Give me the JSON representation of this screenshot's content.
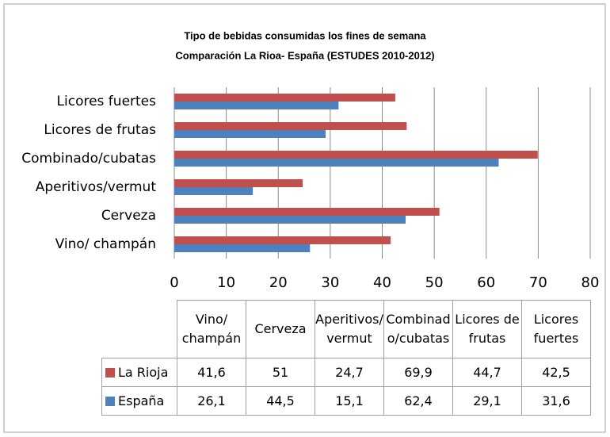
{
  "chart_data": {
    "type": "bar",
    "orientation": "horizontal",
    "title": "Tipo de bebidas consumidas los fines de semana",
    "subtitle": "Comparación La Rioa- España (ESTUDES 2010-2012)",
    "categories": [
      "Vino/ champán",
      "Cerveza",
      "Aperitivos/vermut",
      "Combinado/cubatas",
      "Licores de frutas",
      "Licores fuertes"
    ],
    "series": [
      {
        "name": "La Rioja",
        "color": "#c0504d",
        "values": [
          41.6,
          51,
          24.7,
          69.9,
          44.7,
          42.5
        ],
        "value_labels": [
          "41,6",
          "51",
          "24,7",
          "69,9",
          "44,7",
          "42,5"
        ]
      },
      {
        "name": "España",
        "color": "#4f81bd",
        "values": [
          26.1,
          44.5,
          15.1,
          62.4,
          29.1,
          31.6
        ],
        "value_labels": [
          "26,1",
          "44,5",
          "15,1",
          "62,4",
          "29,1",
          "31,6"
        ]
      }
    ],
    "xlim": [
      0,
      80
    ],
    "xticks": [
      0,
      10,
      20,
      30,
      40,
      50,
      60,
      70,
      80
    ],
    "grid": true,
    "legend": "table"
  }
}
